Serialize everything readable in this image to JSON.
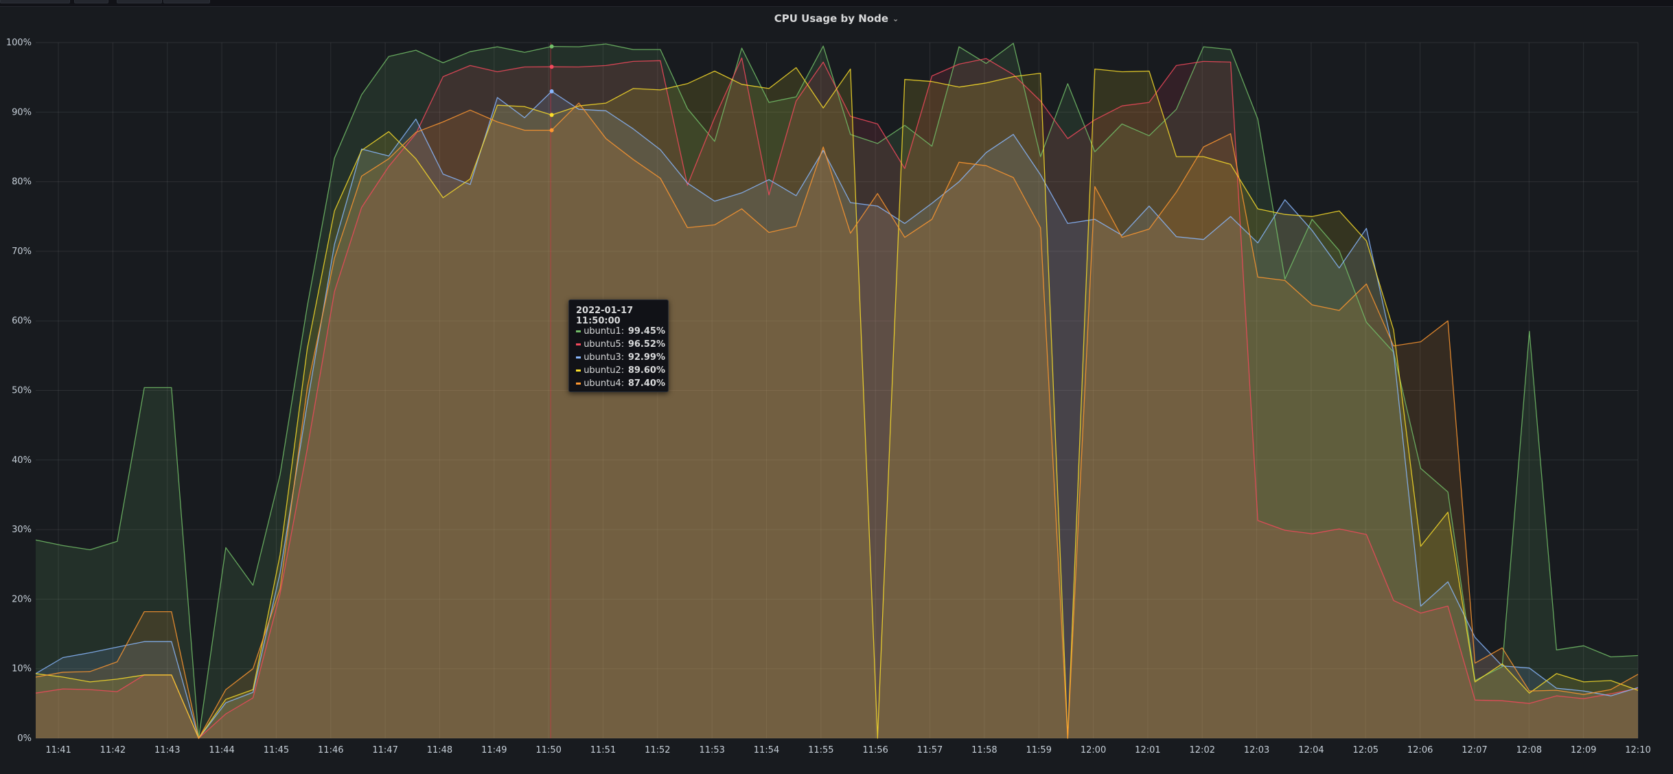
{
  "panel": {
    "title": "CPU Usage by Node",
    "menu_icon": "chevron-down-icon"
  },
  "tooltip": {
    "time": "2022-01-17 11:50:00",
    "rows": [
      {
        "name": "ubuntu1:",
        "value": "99.45%",
        "color": "#73bf69"
      },
      {
        "name": "ubuntu5:",
        "value": "96.52%",
        "color": "#f2495c"
      },
      {
        "name": "ubuntu3:",
        "value": "92.99%",
        "color": "#8ab8ff"
      },
      {
        "name": "ubuntu2:",
        "value": "89.60%",
        "color": "#fade2a"
      },
      {
        "name": "ubuntu4:",
        "value": "87.40%",
        "color": "#ff9830"
      }
    ]
  },
  "chart_data": {
    "type": "area",
    "title": "CPU Usage by Node",
    "ylim": [
      0,
      100
    ],
    "yticks": [
      "0%",
      "10%",
      "20%",
      "30%",
      "40%",
      "50%",
      "60%",
      "70%",
      "80%",
      "90%",
      "100%"
    ],
    "xticks": [
      "11:41",
      "11:42",
      "11:43",
      "11:44",
      "11:45",
      "11:46",
      "11:47",
      "11:48",
      "11:49",
      "11:50",
      "11:51",
      "11:52",
      "11:53",
      "11:54",
      "11:55",
      "11:56",
      "11:57",
      "11:58",
      "11:59",
      "12:00",
      "12:01",
      "12:02",
      "12:03",
      "12:04",
      "12:05",
      "12:06",
      "12:07",
      "12:08",
      "12:09",
      "12:10"
    ],
    "x_start": "11:40:35",
    "x_end": "12:10:00",
    "hover_time": "11:50:00",
    "grid": true,
    "legend": "none",
    "series": [
      {
        "name": "ubuntu1",
        "color": "#73bf69",
        "values": [
          28.5,
          27.7,
          27.1,
          28.3,
          50.4,
          50.4,
          0.0,
          27.4,
          22.0,
          37.9,
          62.1,
          83.4,
          92.5,
          98.0,
          98.9,
          97.1,
          98.7,
          99.4,
          98.6,
          99.45,
          99.4,
          99.8,
          99.0,
          99.0,
          90.5,
          85.8,
          99.2,
          91.4,
          92.2,
          99.5,
          86.8,
          85.5,
          88.1,
          85.1,
          99.4,
          97.0,
          99.9,
          83.6,
          94.1,
          84.3,
          88.3,
          86.6,
          90.4,
          99.4,
          99.0,
          89.0,
          66.0,
          74.6,
          70.1,
          59.8,
          55.5,
          38.8,
          35.4,
          8.3,
          10.3,
          58.5,
          12.7,
          13.3,
          11.7,
          11.9
        ]
      },
      {
        "name": "ubuntu5",
        "color": "#f2495c",
        "values": [
          6.5,
          7.1,
          7.0,
          6.7,
          9.1,
          9.1,
          0.0,
          3.5,
          5.8,
          20.8,
          41.6,
          64.2,
          76.3,
          82.2,
          86.9,
          95.1,
          96.7,
          95.8,
          96.5,
          96.52,
          96.5,
          96.7,
          97.3,
          97.4,
          79.5,
          89.2,
          97.8,
          78.1,
          91.6,
          97.2,
          89.4,
          88.3,
          81.9,
          95.2,
          96.9,
          97.7,
          95.4,
          91.6,
          86.2,
          88.9,
          90.9,
          91.4,
          96.7,
          97.3,
          97.2,
          31.3,
          29.9,
          29.4,
          30.1,
          29.3,
          19.8,
          18.0,
          19.0,
          5.5,
          5.4,
          5.0,
          6.1,
          5.7,
          6.4,
          7.2
        ]
      },
      {
        "name": "ubuntu3",
        "color": "#8ab8ff",
        "values": [
          9.3,
          11.6,
          12.3,
          13.1,
          13.9,
          13.9,
          0.0,
          5.1,
          6.6,
          23.8,
          48.1,
          71.0,
          84.7,
          83.7,
          89.0,
          81.1,
          79.6,
          92.1,
          89.2,
          92.99,
          90.4,
          90.2,
          87.6,
          84.6,
          79.8,
          77.2,
          78.4,
          80.3,
          78.0,
          84.5,
          77.0,
          76.5,
          74.0,
          76.9,
          80.0,
          84.2,
          86.8,
          81.0,
          74.0,
          74.6,
          72.3,
          76.5,
          72.1,
          71.7,
          75.0,
          71.2,
          77.4,
          73.0,
          67.6,
          73.3,
          55.5,
          19.0,
          22.5,
          14.5,
          10.4,
          10.1,
          7.2,
          6.8,
          6.1,
          7.3
        ]
      },
      {
        "name": "ubuntu2",
        "color": "#fade2a",
        "values": [
          9.3,
          8.8,
          8.1,
          8.5,
          9.1,
          9.1,
          0.0,
          5.6,
          7.0,
          26.4,
          56.0,
          75.8,
          84.5,
          87.2,
          83.3,
          77.7,
          80.4,
          91.0,
          90.8,
          89.6,
          90.9,
          91.3,
          93.4,
          93.2,
          94.1,
          95.9,
          94.0,
          93.4,
          96.4,
          90.6,
          96.2,
          0.0,
          94.7,
          94.4,
          93.6,
          94.2,
          95.1,
          95.6,
          0.0,
          96.2,
          95.8,
          95.9,
          83.6,
          83.6,
          82.5,
          76.1,
          75.3,
          75.0,
          75.8,
          71.5,
          58.7,
          27.6,
          32.5,
          8.1,
          10.7,
          6.5,
          9.3,
          8.1,
          8.3,
          6.9
        ]
      },
      {
        "name": "ubuntu4",
        "color": "#ff9830",
        "values": [
          8.8,
          9.5,
          9.6,
          11.0,
          18.2,
          18.2,
          0.0,
          7.0,
          10.0,
          21.5,
          50.4,
          69.0,
          80.8,
          83.3,
          87.1,
          88.6,
          90.3,
          88.6,
          87.4,
          87.4,
          91.3,
          86.2,
          83.2,
          80.5,
          73.4,
          73.8,
          76.1,
          72.7,
          73.6,
          85.0,
          72.6,
          78.3,
          72.0,
          74.6,
          82.8,
          82.3,
          80.6,
          73.4,
          0.0,
          79.3,
          72.0,
          73.2,
          78.5,
          85.0,
          86.9,
          66.3,
          65.8,
          62.3,
          61.5,
          65.3,
          56.4,
          57.0,
          60.0,
          10.8,
          13.0,
          6.8,
          6.9,
          6.3,
          7.0,
          9.2
        ]
      }
    ]
  }
}
